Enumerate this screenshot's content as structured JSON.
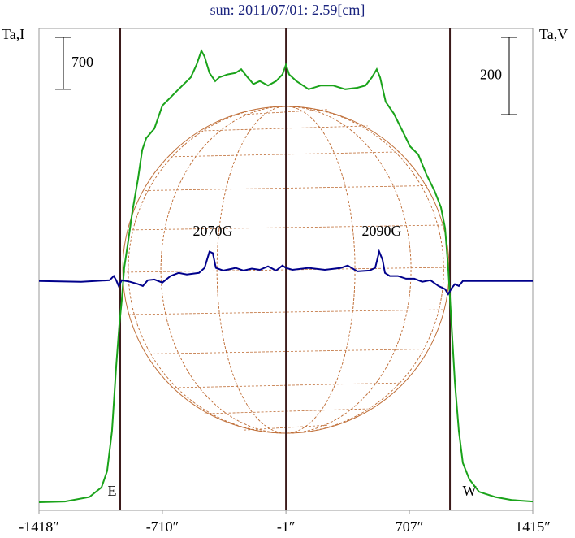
{
  "chart_data": {
    "type": "line",
    "title": "sun: 2011/07/01: 2.59[cm]",
    "y_label": "Ta,I",
    "y2_label": "Ta,V",
    "xlim": [
      -1418,
      1415
    ],
    "xticks": [
      {
        "value": -1418,
        "label": "-1418″"
      },
      {
        "value": -710,
        "label": "-710″"
      },
      {
        "value": -1,
        "label": "-1″"
      },
      {
        "value": 707,
        "label": "707″"
      },
      {
        "value": 1415,
        "label": "1415″"
      }
    ],
    "ylim": [
      0,
      6500
    ],
    "y2lim": [
      -594,
      654
    ],
    "scale_bars": [
      {
        "value": 700,
        "axis": "y"
      },
      {
        "value": 200,
        "axis": "y2"
      }
    ],
    "vlines": [
      -952,
      -1,
      940
    ],
    "annotations": [
      "2070G",
      "2090G",
      "E",
      "W"
    ],
    "series": [
      {
        "color": "#1aa31a",
        "axis": "y",
        "x": [
          -1418,
          -1269,
          -1129,
          -1059,
          -1027,
          -999,
          -975,
          -957,
          -943,
          -929,
          -905,
          -882,
          -850,
          -826,
          -803,
          -756,
          -710,
          -663,
          -617,
          -547,
          -514,
          -486,
          -468,
          -440,
          -407,
          -384,
          -337,
          -290,
          -258,
          -221,
          -188,
          -151,
          -104,
          -58,
          -21,
          -1,
          17,
          59,
          129,
          199,
          269,
          339,
          408,
          455,
          492,
          520,
          539,
          571,
          618,
          665,
          711,
          758,
          805,
          851,
          888,
          912,
          930,
          949,
          968,
          991,
          1014,
          1051,
          1107,
          1200,
          1294,
          1415
        ],
        "values": [
          110,
          120,
          180,
          310,
          530,
          1070,
          1950,
          2500,
          2830,
          3270,
          3650,
          4030,
          4470,
          4860,
          5020,
          5150,
          5460,
          5570,
          5680,
          5840,
          6010,
          6200,
          6120,
          5900,
          5790,
          5840,
          5880,
          5900,
          5950,
          5840,
          5750,
          5790,
          5730,
          5790,
          5880,
          6010,
          5880,
          5790,
          5680,
          5730,
          5730,
          5680,
          5700,
          5730,
          5840,
          5950,
          5840,
          5510,
          5350,
          5130,
          4910,
          4800,
          4530,
          4310,
          4090,
          3810,
          3270,
          2500,
          1730,
          1070,
          640,
          420,
          250,
          180,
          140,
          120
        ]
      },
      {
        "color": "#00008b",
        "axis": "y2",
        "x": [
          -1418,
          -1176,
          -1013,
          -989,
          -975,
          -961,
          -943,
          -896,
          -850,
          -822,
          -794,
          -756,
          -710,
          -663,
          -617,
          -570,
          -500,
          -468,
          -440,
          -421,
          -403,
          -360,
          -290,
          -244,
          -197,
          -151,
          -104,
          -58,
          -21,
          -1,
          36,
          129,
          222,
          315,
          353,
          408,
          478,
          511,
          534,
          553,
          567,
          595,
          641,
          688,
          735,
          781,
          828,
          874,
          912,
          930,
          949,
          968,
          991,
          1014,
          1154,
          1415
        ],
        "values": [
          0,
          -2,
          2,
          13,
          2,
          -13,
          2,
          -2,
          -8,
          -13,
          2,
          4,
          -4,
          13,
          21,
          17,
          21,
          34,
          76,
          72,
          34,
          27,
          34,
          27,
          32,
          29,
          38,
          27,
          40,
          34,
          29,
          34,
          29,
          34,
          40,
          25,
          27,
          34,
          76,
          55,
          21,
          13,
          13,
          6,
          6,
          -2,
          2,
          -13,
          -21,
          -34,
          -19,
          -8,
          -13,
          0,
          0,
          0
        ]
      }
    ]
  }
}
